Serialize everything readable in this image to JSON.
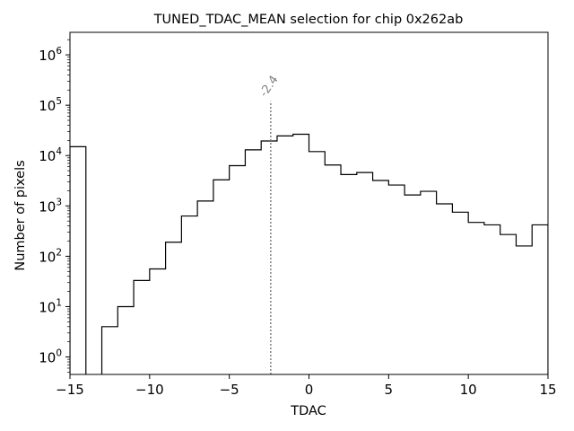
{
  "chart_data": {
    "type": "histogram-step",
    "title": "TUNED_TDAC_MEAN selection for chip 0x262ab",
    "xlabel": "TDAC",
    "ylabel": "Number of pixels",
    "xlim": [
      -15,
      15
    ],
    "ylim": [
      0.45,
      2800000
    ],
    "yscale": "log",
    "grid": false,
    "x_ticks": [
      -15,
      -10,
      -5,
      0,
      5,
      10,
      15
    ],
    "x_tick_labels": [
      "−15",
      "−10",
      "−5",
      "0",
      "5",
      "10",
      "15"
    ],
    "y_ticks": [
      1,
      10,
      100,
      1000,
      10000,
      100000,
      1000000
    ],
    "y_tick_bases": [
      "10",
      "10",
      "10",
      "10",
      "10",
      "10",
      "10"
    ],
    "y_tick_exponents": [
      "0",
      "1",
      "2",
      "3",
      "4",
      "5",
      "6"
    ],
    "bin_edges": [
      -15,
      -14,
      -13,
      -12,
      -11,
      -10,
      -9,
      -8,
      -7,
      -6,
      -5,
      -4,
      -3,
      -2,
      -1,
      0,
      1,
      2,
      3,
      4,
      5,
      6,
      7,
      8,
      9,
      10,
      11,
      12,
      13,
      14,
      15
    ],
    "counts": [
      15000,
      0,
      4,
      10,
      33,
      56,
      190,
      630,
      1250,
      3300,
      6300,
      13000,
      19500,
      24500,
      26500,
      12000,
      6500,
      4200,
      4600,
      3200,
      2600,
      1650,
      1950,
      1100,
      750,
      470,
      420,
      270,
      160,
      420
    ],
    "line_color": "#000000",
    "annotation": {
      "x": -2.4,
      "y_top": 120000,
      "text": "-2.4",
      "color": "#808080"
    }
  }
}
